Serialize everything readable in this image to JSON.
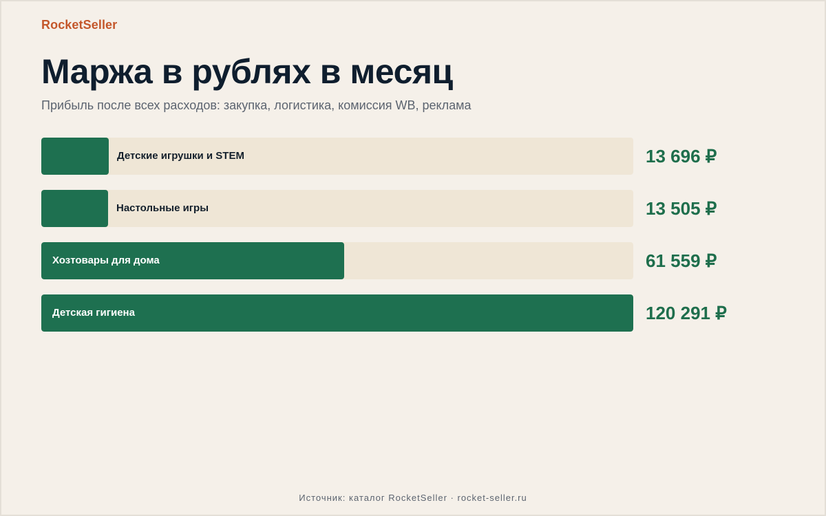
{
  "brand": "RocketSeller",
  "title": "Маржа в рублях в месяц",
  "subtitle": "Прибыль после всех расходов: закупка, логистика, комиссия WB, реклама",
  "source": "Источник: каталог RocketSeller · rocket-seller.ru",
  "colors": {
    "bar": "#1e7050",
    "track": "#efe6d6",
    "value": "#1e6e4c",
    "brand": "#c4572b",
    "background": "#f5f0e9"
  },
  "chart_data": {
    "type": "bar",
    "orientation": "horizontal",
    "categories": [
      "Детские игрушки и STEM",
      "Настольные игры",
      "Хозтовары для дома",
      "Детская гигиена"
    ],
    "values": [
      13696,
      13505,
      61559,
      120291
    ],
    "value_labels": [
      "13 696 ₽",
      "13 505 ₽",
      "61 559 ₽",
      "120 291 ₽"
    ],
    "unit": "₽",
    "xlim": [
      0,
      120291
    ]
  }
}
